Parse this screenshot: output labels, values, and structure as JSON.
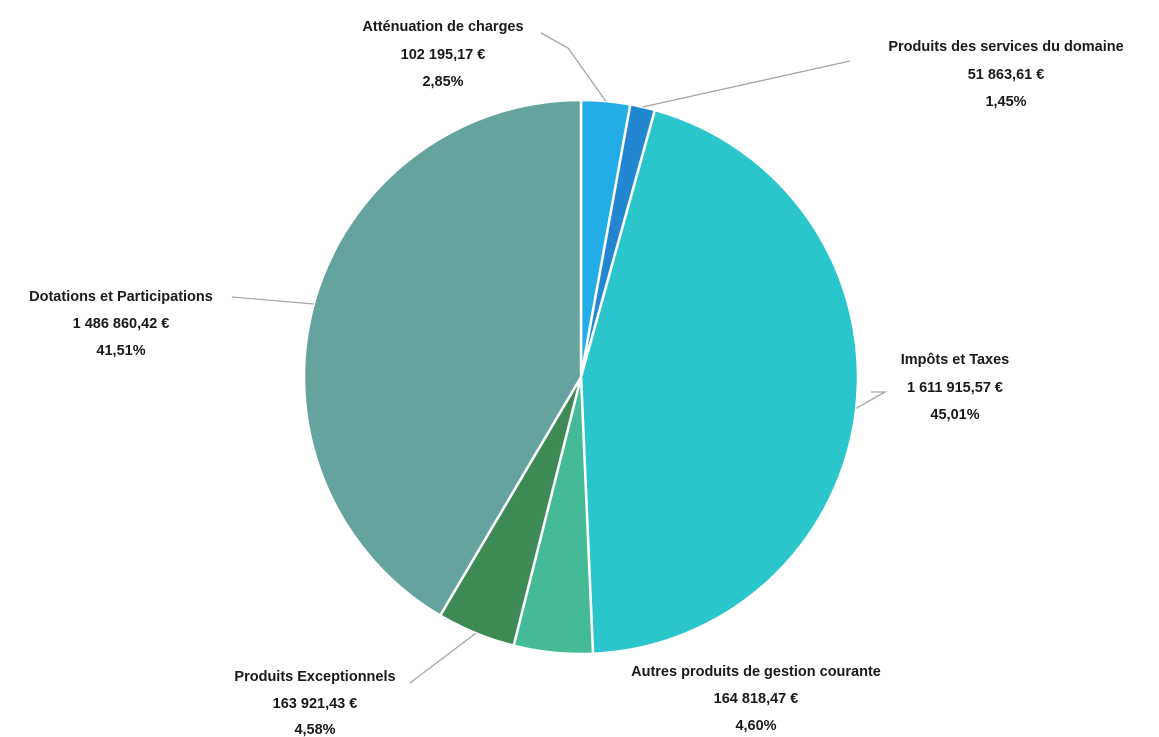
{
  "chart_data": {
    "type": "pie",
    "title": "",
    "slices": [
      {
        "label": "Atténuation de charges",
        "amount": "102 195,17 €",
        "percent_label": "2,85%",
        "value": 2.85,
        "color": "#22ade6"
      },
      {
        "label": "Produits des services du domaine",
        "amount": "51 863,61 €",
        "percent_label": "1,45%",
        "value": 1.45,
        "color": "#2386d1"
      },
      {
        "label": "Impôts et Taxes",
        "amount": "1 611 915,57 €",
        "percent_label": "45,01%",
        "value": 45.01,
        "color": "#2bc5cc"
      },
      {
        "label": "Autres produits de gestion courante",
        "amount": "164 818,47 €",
        "percent_label": "4,60%",
        "value": 4.6,
        "color": "#44bb96"
      },
      {
        "label": "Produits Exceptionnels",
        "amount": "163 921,43 €",
        "percent_label": "4,58%",
        "value": 4.58,
        "color": "#3e8a55"
      },
      {
        "label": "Dotations et Participations",
        "amount": "1 486 860,42 €",
        "percent_label": "41,51%",
        "value": 41.51,
        "color": "#64a39e"
      }
    ]
  }
}
